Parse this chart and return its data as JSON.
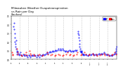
{
  "title": "Milwaukee Weather Evapotranspiration\nvs Rain per Day\n(Inches)",
  "title_fontsize": 3.0,
  "bg_color": "#ffffff",
  "et_color": "#0000ff",
  "rain_color": "#ff0000",
  "legend_et": "ET",
  "legend_rain": "Rain",
  "ylim": [
    0,
    0.5
  ],
  "yticks": [
    0.0,
    0.1,
    0.2,
    0.3,
    0.4,
    0.5
  ],
  "month_start_days": [
    1,
    32,
    60,
    91,
    121,
    152,
    182,
    213,
    244,
    274,
    305,
    335
  ],
  "mid_month_days": [
    16,
    46,
    75,
    106,
    136,
    167,
    197,
    228,
    259,
    289,
    320,
    350
  ],
  "xtick_labels": [
    "1/1",
    "2/1",
    "3/1",
    "4/1",
    "5/1",
    "6/1",
    "7/1",
    "8/1",
    "9/1",
    "10/1",
    "11/1",
    "12/1"
  ],
  "et_data": [
    [
      10,
      0.38
    ],
    [
      11,
      0.42
    ],
    [
      12,
      0.35
    ],
    [
      13,
      0.3
    ],
    [
      14,
      0.25
    ],
    [
      15,
      0.2
    ],
    [
      16,
      0.15
    ],
    [
      17,
      0.18
    ],
    [
      18,
      0.22
    ],
    [
      19,
      0.12
    ],
    [
      20,
      0.08
    ],
    [
      21,
      0.1
    ],
    [
      22,
      0.06
    ],
    [
      23,
      0.09
    ],
    [
      25,
      0.07
    ],
    [
      28,
      0.05
    ],
    [
      30,
      0.06
    ],
    [
      33,
      0.08
    ],
    [
      35,
      0.05
    ],
    [
      38,
      0.04
    ],
    [
      42,
      0.06
    ],
    [
      45,
      0.05
    ],
    [
      48,
      0.04
    ],
    [
      52,
      0.05
    ],
    [
      55,
      0.04
    ],
    [
      58,
      0.03
    ],
    [
      62,
      0.05
    ],
    [
      65,
      0.04
    ],
    [
      68,
      0.03
    ],
    [
      72,
      0.04
    ],
    [
      75,
      0.05
    ],
    [
      78,
      0.04
    ],
    [
      82,
      0.05
    ],
    [
      85,
      0.04
    ],
    [
      88,
      0.03
    ],
    [
      92,
      0.05
    ],
    [
      95,
      0.04
    ],
    [
      98,
      0.03
    ],
    [
      102,
      0.05
    ],
    [
      105,
      0.04
    ],
    [
      108,
      0.05
    ],
    [
      112,
      0.06
    ],
    [
      115,
      0.05
    ],
    [
      118,
      0.06
    ],
    [
      122,
      0.07
    ],
    [
      125,
      0.08
    ],
    [
      128,
      0.07
    ],
    [
      132,
      0.08
    ],
    [
      135,
      0.09
    ],
    [
      138,
      0.08
    ],
    [
      142,
      0.09
    ],
    [
      145,
      0.1
    ],
    [
      148,
      0.09
    ],
    [
      152,
      0.1
    ],
    [
      155,
      0.11
    ],
    [
      158,
      0.1
    ],
    [
      162,
      0.11
    ],
    [
      165,
      0.12
    ],
    [
      168,
      0.11
    ],
    [
      172,
      0.12
    ],
    [
      175,
      0.11
    ],
    [
      178,
      0.12
    ],
    [
      182,
      0.11
    ],
    [
      185,
      0.1
    ],
    [
      188,
      0.09
    ],
    [
      192,
      0.1
    ],
    [
      195,
      0.09
    ],
    [
      198,
      0.1
    ],
    [
      202,
      0.11
    ],
    [
      205,
      0.1
    ],
    [
      208,
      0.09
    ],
    [
      212,
      0.1
    ],
    [
      215,
      0.09
    ],
    [
      218,
      0.1
    ],
    [
      222,
      0.11
    ],
    [
      225,
      0.1
    ],
    [
      228,
      0.11
    ],
    [
      232,
      0.3
    ],
    [
      233,
      0.32
    ],
    [
      234,
      0.28
    ],
    [
      235,
      0.25
    ],
    [
      236,
      0.22
    ],
    [
      237,
      0.18
    ],
    [
      238,
      0.15
    ],
    [
      239,
      0.12
    ],
    [
      240,
      0.1
    ],
    [
      241,
      0.08
    ],
    [
      242,
      0.09
    ],
    [
      243,
      0.1
    ],
    [
      244,
      0.09
    ],
    [
      245,
      0.08
    ],
    [
      246,
      0.07
    ],
    [
      248,
      0.06
    ],
    [
      250,
      0.05
    ],
    [
      252,
      0.06
    ],
    [
      255,
      0.05
    ],
    [
      258,
      0.06
    ],
    [
      262,
      0.05
    ],
    [
      265,
      0.04
    ],
    [
      268,
      0.05
    ],
    [
      272,
      0.06
    ],
    [
      275,
      0.05
    ],
    [
      278,
      0.06
    ],
    [
      282,
      0.07
    ],
    [
      285,
      0.06
    ],
    [
      288,
      0.05
    ],
    [
      292,
      0.06
    ],
    [
      295,
      0.05
    ],
    [
      300,
      0.06
    ],
    [
      305,
      0.07
    ],
    [
      308,
      0.06
    ],
    [
      312,
      0.07
    ],
    [
      315,
      0.06
    ],
    [
      318,
      0.07
    ],
    [
      322,
      0.08
    ],
    [
      325,
      0.07
    ],
    [
      328,
      0.06
    ],
    [
      332,
      0.05
    ],
    [
      335,
      0.06
    ],
    [
      338,
      0.05
    ],
    [
      342,
      0.04
    ],
    [
      345,
      0.05
    ],
    [
      348,
      0.04
    ],
    [
      352,
      0.05
    ],
    [
      355,
      0.06
    ],
    [
      358,
      0.07
    ],
    [
      360,
      0.08
    ],
    [
      362,
      0.07
    ],
    [
      363,
      0.1
    ],
    [
      364,
      0.12
    ],
    [
      365,
      0.15
    ]
  ],
  "rain_data": [
    [
      5,
      0.08
    ],
    [
      6,
      0.05
    ],
    [
      7,
      0.06
    ],
    [
      22,
      0.12
    ],
    [
      23,
      0.08
    ],
    [
      24,
      0.06
    ],
    [
      35,
      0.05
    ],
    [
      38,
      0.04
    ],
    [
      48,
      0.06
    ],
    [
      52,
      0.08
    ],
    [
      55,
      0.05
    ],
    [
      65,
      0.1
    ],
    [
      68,
      0.07
    ],
    [
      70,
      0.05
    ],
    [
      80,
      0.06
    ],
    [
      82,
      0.04
    ],
    [
      95,
      0.05
    ],
    [
      98,
      0.06
    ],
    [
      108,
      0.04
    ],
    [
      112,
      0.05
    ],
    [
      125,
      0.08
    ],
    [
      128,
      0.06
    ],
    [
      138,
      0.05
    ],
    [
      142,
      0.06
    ],
    [
      152,
      0.04
    ],
    [
      155,
      0.05
    ],
    [
      165,
      0.06
    ],
    [
      168,
      0.05
    ],
    [
      178,
      0.04
    ],
    [
      182,
      0.05
    ],
    [
      192,
      0.06
    ],
    [
      195,
      0.08
    ],
    [
      202,
      0.05
    ],
    [
      205,
      0.06
    ],
    [
      215,
      0.04
    ],
    [
      218,
      0.05
    ],
    [
      228,
      0.06
    ],
    [
      230,
      0.08
    ],
    [
      242,
      0.05
    ],
    [
      245,
      0.06
    ],
    [
      255,
      0.08
    ],
    [
      258,
      0.06
    ],
    [
      268,
      0.05
    ],
    [
      272,
      0.06
    ],
    [
      282,
      0.07
    ],
    [
      285,
      0.05
    ],
    [
      295,
      0.06
    ],
    [
      298,
      0.04
    ],
    [
      308,
      0.05
    ],
    [
      312,
      0.06
    ],
    [
      322,
      0.07
    ],
    [
      325,
      0.05
    ],
    [
      335,
      0.06
    ],
    [
      338,
      0.04
    ],
    [
      348,
      0.05
    ],
    [
      352,
      0.06
    ],
    [
      358,
      0.08
    ],
    [
      362,
      0.06
    ]
  ]
}
